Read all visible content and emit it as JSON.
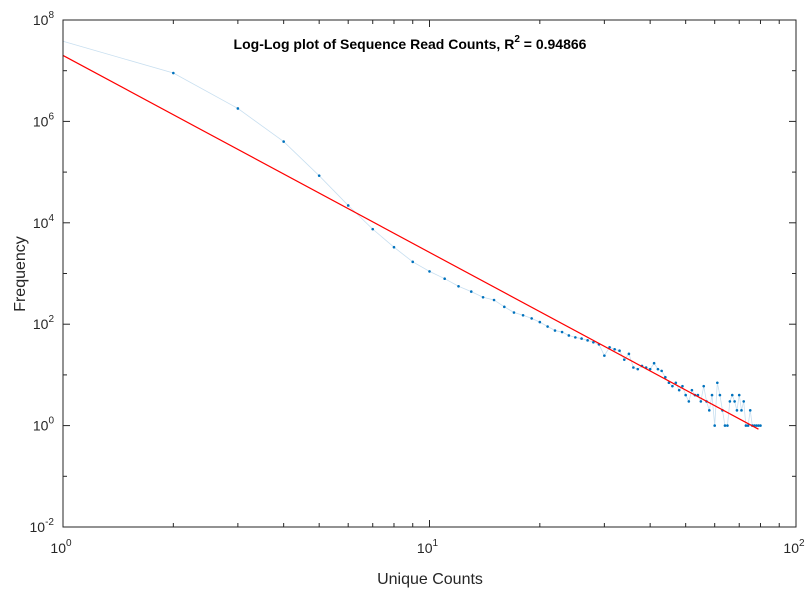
{
  "chart_data": {
    "type": "scatter",
    "title": {
      "prefix": "Log-Log plot of Sequence Read Counts, R",
      "superscript": "2",
      "suffix": " = 0.94866"
    },
    "xlabel": "Unique Counts",
    "ylabel": "Frequency",
    "x_scale": "log",
    "y_scale": "log",
    "xlim": [
      1,
      100
    ],
    "ylim": [
      0.01,
      100000000
    ],
    "x_ticks": [
      {
        "value": 1,
        "base": "10",
        "exp": "0"
      },
      {
        "value": 10,
        "base": "10",
        "exp": "1"
      },
      {
        "value": 100,
        "base": "10",
        "exp": "2"
      }
    ],
    "y_ticks": [
      {
        "value": 0.01,
        "base": "10",
        "exp": "-2"
      },
      {
        "value": 1,
        "base": "10",
        "exp": "0"
      },
      {
        "value": 100,
        "base": "10",
        "exp": "2"
      },
      {
        "value": 10000,
        "base": "10",
        "exp": "4"
      },
      {
        "value": 1000000,
        "base": "10",
        "exp": "6"
      },
      {
        "value": 100000000,
        "base": "10",
        "exp": "8"
      }
    ],
    "grid": false,
    "colors": {
      "data": "#0072BD",
      "connector": "#c8dff0",
      "fit": "#ff0000",
      "axes": "#262626"
    },
    "series": [
      {
        "role": "observed",
        "style": "points-with-thin-line",
        "x": [
          1,
          2,
          3,
          4,
          5,
          6,
          7,
          8,
          9,
          10,
          11,
          12,
          13,
          14,
          15,
          16,
          17,
          18,
          19,
          20,
          21,
          22,
          23,
          24,
          25,
          26,
          27,
          28,
          29,
          30,
          31,
          32,
          33,
          34,
          35,
          36,
          37,
          38,
          39,
          40,
          41,
          42,
          43,
          44,
          45,
          46,
          47,
          48,
          49,
          50,
          51,
          52,
          53,
          54,
          55,
          56,
          57,
          58,
          59,
          60,
          61,
          62,
          63,
          64,
          65,
          66,
          67,
          68,
          69,
          70,
          71,
          72,
          73,
          74,
          75,
          76,
          77,
          78,
          79,
          80
        ],
        "y": [
          38000000,
          9000000,
          1800000,
          400000,
          85000,
          22000,
          7500,
          3300,
          1700,
          1100,
          790,
          560,
          440,
          340,
          300,
          220,
          170,
          150,
          130,
          110,
          90,
          75,
          70,
          60,
          55,
          52,
          48,
          44,
          40,
          24,
          35,
          32,
          30,
          20,
          26,
          14,
          13,
          15,
          14,
          13,
          17,
          13,
          12,
          9,
          7,
          6,
          7,
          5,
          6,
          4,
          3,
          5,
          4,
          4,
          3,
          6,
          3,
          2,
          4,
          1,
          7,
          4,
          2,
          1,
          1,
          3,
          4,
          3,
          2,
          4,
          2,
          3,
          1,
          1,
          2,
          1,
          1,
          1,
          1,
          1
        ]
      },
      {
        "role": "fit",
        "style": "line",
        "x": [
          1,
          79
        ],
        "y": [
          20000000,
          0.85
        ]
      }
    ]
  }
}
